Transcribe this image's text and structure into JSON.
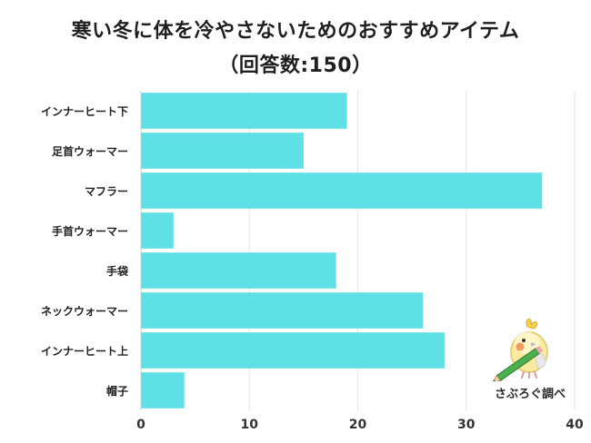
{
  "chart_data": {
    "type": "bar",
    "orientation": "horizontal",
    "title": "寒い冬に体を冷やさないためのおすすめアイテム",
    "subtitle": "（回答数:150）",
    "categories": [
      "インナーヒート下",
      "足首ウォーマー",
      "マフラー",
      "手首ウォーマー",
      "手袋",
      "ネックウォーマー",
      "インナーヒート上",
      "帽子"
    ],
    "values": [
      19,
      15,
      37,
      3,
      18,
      26,
      28,
      4
    ],
    "xlim": [
      0,
      40
    ],
    "xticks": [
      "0",
      "10",
      "20",
      "30",
      "40"
    ],
    "grid": true,
    "bar_color": "#5EE0E6",
    "xlabel": "",
    "ylabel": ""
  },
  "credit": {
    "label": "さぶろぐ調べ",
    "icon": "cockatiel-mascot-icon"
  }
}
